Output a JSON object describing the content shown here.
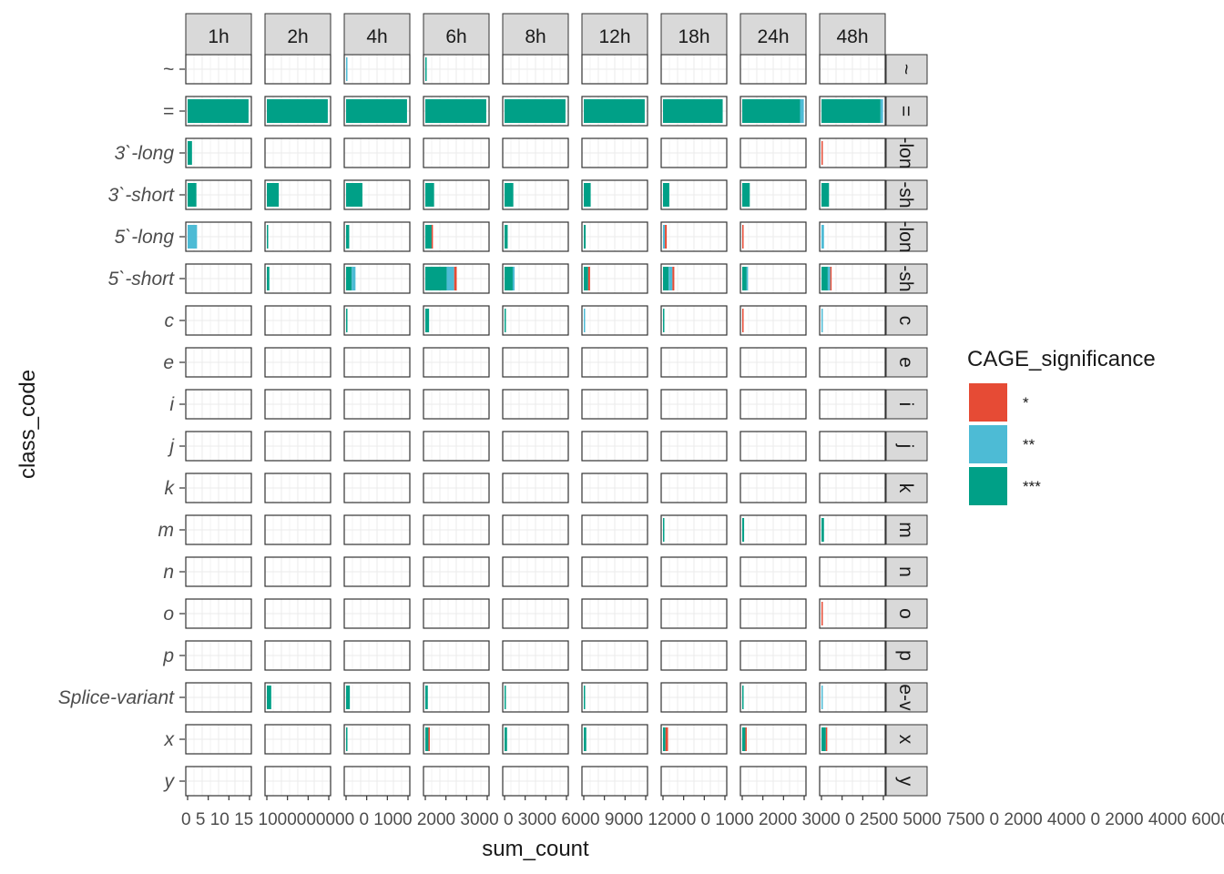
{
  "chart_data": {
    "type": "bar",
    "orientation": "horizontal",
    "stacked": true,
    "facet_columns": [
      "1h",
      "2h",
      "4h",
      "6h",
      "8h",
      "12h",
      "18h",
      "24h",
      "48h"
    ],
    "facet_rows": [
      "~",
      "=",
      "3`-long",
      "3`-short",
      "5`-long",
      "5`-short",
      "c",
      "e",
      "i",
      "j",
      "k",
      "m",
      "n",
      "o",
      "p",
      "Splice-variant",
      "x",
      "y"
    ],
    "row_strip_labels": [
      "~",
      "=",
      "-lon",
      "-sh",
      "-lon",
      "-sh",
      "c",
      "e",
      "i",
      "j",
      "k",
      "m",
      "n",
      "o",
      "p",
      "e-v",
      "x",
      "y"
    ],
    "xlabel": "sum_count",
    "ylabel": "class_code",
    "legend": {
      "title": "CAGE_significance",
      "position": "right",
      "entries": [
        {
          "label": "*",
          "color": "#E64B35"
        },
        {
          "label": "**",
          "color": "#4DBBD5"
        },
        {
          "label": "***",
          "color": "#00A087"
        }
      ]
    },
    "grid": true,
    "free_x_scales": true,
    "column_scales": [
      {
        "xlim": [
          0,
          15
        ],
        "ticks": [
          "0",
          "5",
          "10",
          "15"
        ]
      },
      {
        "xlim": [
          0,
          20000
        ],
        "ticks": [
          "0",
          "1000",
          "2000",
          "3000"
        ]
      },
      {
        "xlim": [
          0,
          30000
        ],
        "ticks": [
          "0",
          "1000",
          "2000",
          "3000"
        ]
      },
      {
        "xlim": [
          0,
          30000
        ],
        "ticks": [
          "0",
          "3000",
          "6000",
          "9000",
          "12000"
        ]
      },
      {
        "xlim": [
          0,
          30000
        ],
        "ticks": [
          "0",
          "1000",
          "2000",
          "3000"
        ]
      },
      {
        "xlim": [
          0,
          30000
        ],
        "ticks": [
          "0",
          "2500",
          "5000",
          "7500"
        ]
      },
      {
        "xlim": [
          0,
          30000
        ],
        "ticks": [
          "0",
          "2000",
          "4000"
        ]
      },
      {
        "xlim": [
          0,
          30000
        ],
        "ticks": [
          "0",
          "2000",
          "4000",
          "6000"
        ]
      },
      {
        "xlim": [
          0,
          30000
        ],
        "ticks": [
          "0",
          "2000",
          "4000",
          "6000"
        ]
      }
    ],
    "tick_text_strip": "0 5 10 15 1000000000 0 1000 2000 3000 0 3000 6000 9000 12000 0 1000 2000 3000 0 2500 5000 7500 0 2000 4000 0 2000 4000 6000 0 2000 4000 6000",
    "bars_fraction_of_panel": {
      "1h": {
        "=": {
          "***": 0.97
        },
        "3`-long": {
          "***": 0.07
        },
        "3`-short": {
          "***": 0.14
        },
        "5`-long": {
          "**": 0.15
        }
      },
      "2h": {
        "=": {
          "***": 0.97
        },
        "3`-short": {
          "***": 0.19
        },
        "5`-long": {
          "***": 0.02
        },
        "5`-short": {
          "***": 0.04
        },
        "Splice-variant": {
          "***": 0.07
        }
      },
      "4h": {
        "~": {
          "**": 0.02
        },
        "=": {
          "***": 0.97
        },
        "3`-short": {
          "***": 0.26
        },
        "5`-long": {
          "***": 0.05
        },
        "5`-short": {
          "***": 0.09,
          "**": 0.06
        },
        "c": {
          "***": 0.02
        },
        "Splice-variant": {
          "***": 0.06
        },
        "x": {
          "***": 0.02
        }
      },
      "6h": {
        "~": {
          "***": 0.02
        },
        "=": {
          "***": 0.97
        },
        "3`-short": {
          "***": 0.14
        },
        "5`-long": {
          "***": 0.1,
          "*": 0.02
        },
        "5`-short": {
          "***": 0.34,
          "**": 0.12,
          "*": 0.04
        },
        "c": {
          "***": 0.06
        },
        "Splice-variant": {
          "***": 0.04
        },
        "x": {
          "***": 0.05,
          "*": 0.01
        }
      },
      "8h": {
        "=": {
          "***": 0.97
        },
        "3`-short": {
          "***": 0.14
        },
        "5`-long": {
          "***": 0.05
        },
        "5`-short": {
          "***": 0.13,
          "**": 0.03
        },
        "c": {
          "***": 0.02
        },
        "Splice-variant": {
          "***": 0.02
        },
        "x": {
          "***": 0.04
        }
      },
      "12h": {
        "=": {
          "***": 0.97
        },
        "3`-short": {
          "***": 0.11
        },
        "5`-long": {
          "***": 0.03
        },
        "5`-short": {
          "***": 0.07,
          "*": 0.03
        },
        "c": {
          "**": 0.02
        },
        "Splice-variant": {
          "***": 0.02
        },
        "x": {
          "***": 0.04
        }
      },
      "18h": {
        "=": {
          "***": 0.95
        },
        "3`-short": {
          "***": 0.1
        },
        "5`-long": {
          "**": 0.03,
          "*": 0.03
        },
        "5`-short": {
          "***": 0.09,
          "**": 0.06,
          "*": 0.03
        },
        "c": {
          "***": 0.02
        },
        "m": {
          "***": 0.02
        },
        "x": {
          "***": 0.04,
          "*": 0.04
        }
      },
      "24h": {
        "=": {
          "***": 0.92,
          "**": 0.06
        },
        "3`-short": {
          "***": 0.12
        },
        "5`-long": {
          "*": 0.02
        },
        "5`-short": {
          "***": 0.07,
          "**": 0.02
        },
        "c": {
          "*": 0.02
        },
        "m": {
          "***": 0.03
        },
        "Splice-variant": {
          "***": 0.02
        },
        "x": {
          "***": 0.05,
          "*": 0.02
        }
      },
      "48h": {
        "=": {
          "***": 0.94,
          "**": 0.04
        },
        "3`-long": {
          "*": 0.02
        },
        "3`-short": {
          "***": 0.12
        },
        "5`-long": {
          "**": 0.04
        },
        "5`-short": {
          "***": 0.1,
          "**": 0.04,
          "*": 0.02
        },
        "c": {
          "**": 0.02
        },
        "m": {
          "***": 0.04
        },
        "o": {
          "*": 0.02
        },
        "Splice-variant": {
          "**": 0.02
        },
        "x": {
          "***": 0.07,
          "*": 0.02
        }
      }
    }
  }
}
